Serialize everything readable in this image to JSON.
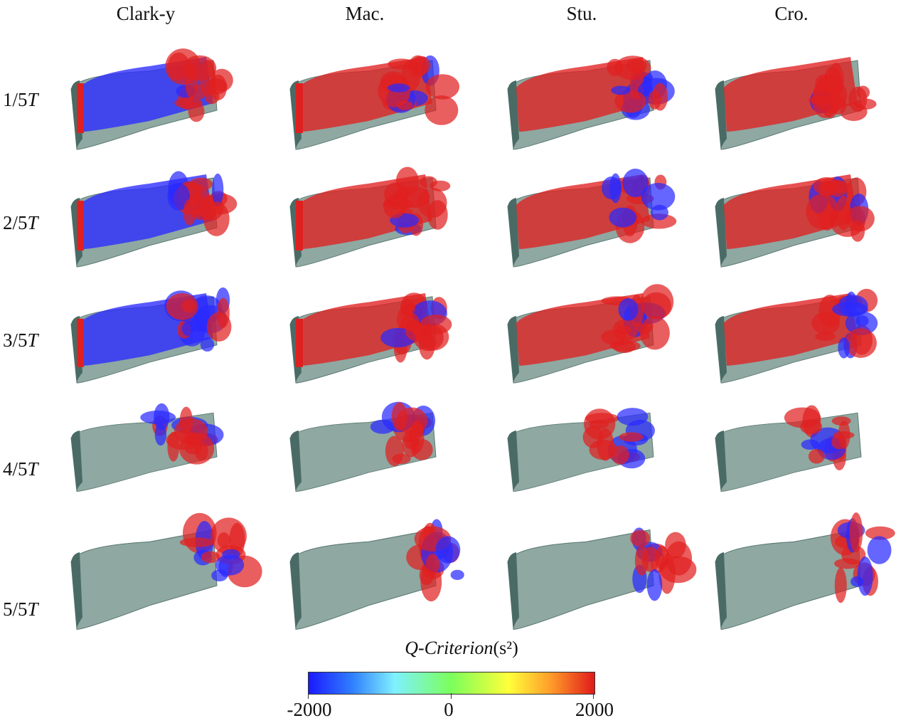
{
  "columns": [
    "Clark-y",
    "Mac.",
    "Stu.",
    "Cro."
  ],
  "rows": [
    {
      "num": "1/5",
      "var": "T"
    },
    {
      "num": "2/5",
      "var": "T"
    },
    {
      "num": "3/5",
      "var": "T"
    },
    {
      "num": "4/5",
      "var": "T"
    },
    {
      "num": "5/5",
      "var": "T"
    }
  ],
  "legend": {
    "title_var": "Q-Criterion",
    "title_unit": "(s²)",
    "ticks": [
      "-2000",
      "0",
      "2000"
    ],
    "colors": [
      "#1a1aff",
      "#7ff0ff",
      "#7bff5a",
      "#ffff3a",
      "#e01a1a"
    ]
  },
  "colors": {
    "body": "#8fa8a2",
    "positive": "#e02020",
    "negative": "#2a2aff"
  }
}
